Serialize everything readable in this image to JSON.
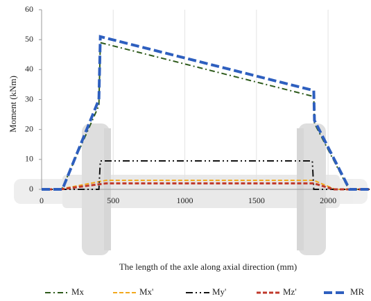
{
  "chart_data": {
    "type": "line",
    "xlabel": "The length of the axle along axial direction (mm)",
    "ylabel": "Moment (kNm)",
    "xlim": [
      0,
      2290
    ],
    "ylim": [
      0,
      60
    ],
    "xticks": [
      0,
      500,
      1000,
      1500,
      2000
    ],
    "yticks": [
      0,
      10,
      20,
      30,
      40,
      50,
      60
    ],
    "grid": true,
    "legend": "bottom",
    "series": [
      {
        "name": "Mx",
        "color": "#2d5a1b",
        "style": "dash-dot",
        "width": 2,
        "x": [
          0,
          140,
          400,
          410,
          1900,
          1905,
          2145,
          2290
        ],
        "values": [
          0,
          0,
          28,
          49,
          31,
          22,
          0,
          0
        ]
      },
      {
        "name": "Mx'",
        "color": "#f2a81d",
        "style": "dash",
        "width": 2,
        "x": [
          0,
          120,
          450,
          1900,
          2050,
          2290
        ],
        "values": [
          0,
          0,
          3,
          3,
          0,
          0
        ]
      },
      {
        "name": "My'",
        "color": "#111111",
        "style": "dash-dot-dot",
        "width": 2,
        "x": [
          0,
          400,
          410,
          1890,
          1900,
          2290
        ],
        "values": [
          0,
          0,
          9.5,
          9.5,
          0,
          0
        ]
      },
      {
        "name": "Mz'",
        "color": "#c0392b",
        "style": "dash",
        "width": 3,
        "x": [
          0,
          130,
          450,
          1900,
          2040,
          2290
        ],
        "values": [
          0,
          0,
          2,
          2,
          0,
          0
        ]
      },
      {
        "name": "MR",
        "color": "#2e5fbf",
        "style": "long-dash",
        "width": 4,
        "x": [
          0,
          145,
          400,
          410,
          1900,
          1905,
          2150,
          2290
        ],
        "values": [
          0,
          0,
          30,
          51,
          33,
          23,
          0,
          0
        ]
      }
    ]
  }
}
